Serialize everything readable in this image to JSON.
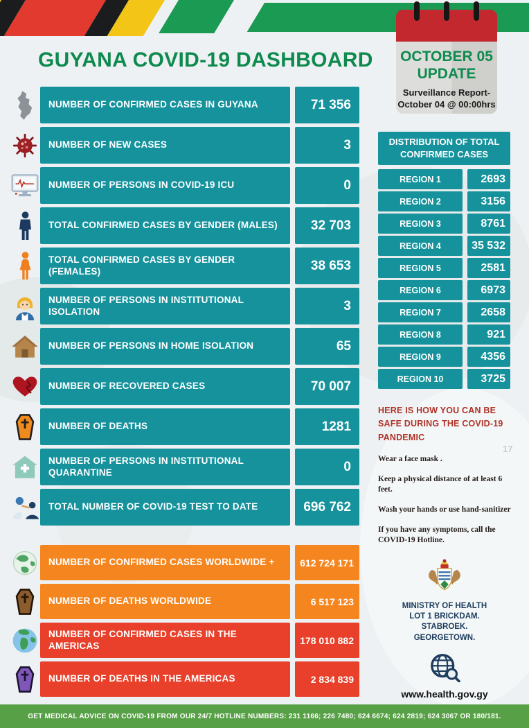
{
  "title": "GUYANA COVID-19 DASHBOARD",
  "watermark": "17",
  "calendar": {
    "date_line": "OCTOBER 05",
    "update_line": "UPDATE",
    "note_line1": "Surveillance Report-",
    "note_line2": "October 04 @ 00:00hrs"
  },
  "stats": [
    {
      "icon": "guyana-map-icon",
      "label": "NUMBER OF CONFIRMED CASES IN GUYANA",
      "value": "71 356"
    },
    {
      "icon": "virus-icon",
      "label": "NUMBER OF NEW CASES",
      "value": "3"
    },
    {
      "icon": "icu-monitor-icon",
      "label": "NUMBER OF PERSONS  IN COVID-19 ICU",
      "value": "0"
    },
    {
      "icon": "male-icon",
      "label": "TOTAL CONFIRMED CASES BY GENDER (MALES)",
      "value": "32 703"
    },
    {
      "icon": "female-icon",
      "label": "TOTAL CONFIRMED CASES BY GENDER (FEMALES)",
      "value": "38 653"
    },
    {
      "icon": "nurse-icon",
      "label": "NUMBER OF PERSONS IN INSTITUTIONAL ISOLATION",
      "value": "3"
    },
    {
      "icon": "home-icon",
      "label": "NUMBER OF PERSONS IN HOME ISOLATION",
      "value": "65"
    },
    {
      "icon": "heart-icon",
      "label": "NUMBER OF RECOVERED CASES",
      "value": "70 007"
    },
    {
      "icon": "coffin-orange-icon",
      "label": "NUMBER OF DEATHS",
      "value": "1281"
    },
    {
      "icon": "quarantine-house-icon",
      "label": "NUMBER OF PERSONS IN INSTITUTIONAL QUARANTINE",
      "value": "0"
    },
    {
      "icon": "covid-test-icon",
      "label": "TOTAL NUMBER OF COVID-19 TEST TO DATE",
      "value": "696 762"
    }
  ],
  "world_stats": [
    {
      "icon": "globe-green-icon",
      "label": "NUMBER OF CONFIRMED CASES WORLDWIDE +",
      "value": "612 724 171",
      "style": "orange"
    },
    {
      "icon": "coffin-brown-icon",
      "label": "NUMBER OF DEATHS WORLDWIDE",
      "value": "6 517 123",
      "style": "orange"
    },
    {
      "icon": "globe-americas-icon",
      "label": "NUMBER OF CONFIRMED CASES IN THE AMERICAS",
      "value": "178 010 882",
      "style": "red"
    },
    {
      "icon": "coffin-purple-icon",
      "label": "NUMBER OF DEATHS IN THE AMERICAS",
      "value": "2 834 839",
      "style": "red"
    }
  ],
  "distribution": {
    "header": "DISTRIBUTION OF TOTAL CONFIRMED CASES",
    "rows": [
      {
        "region": "REGION 1",
        "value": "2693"
      },
      {
        "region": "REGION 2",
        "value": "3156"
      },
      {
        "region": "REGION 3",
        "value": "8761"
      },
      {
        "region": "REGION 4",
        "value": "35 532"
      },
      {
        "region": "REGION 5",
        "value": "2581"
      },
      {
        "region": "REGION 6",
        "value": "6973"
      },
      {
        "region": "REGION 7",
        "value": "2658"
      },
      {
        "region": "REGION 8",
        "value": "921"
      },
      {
        "region": "REGION 9",
        "value": "4356"
      },
      {
        "region": "REGION 10",
        "value": "3725"
      }
    ]
  },
  "safety": {
    "header": "HERE IS HOW YOU CAN BE SAFE DURING THE COVID-19 PANDEMIC",
    "tips": [
      "Wear a face mask .",
      "Keep a physical distance of at least 6 feet.",
      "Wash your hands or use hand-sanitizer",
      "If you have any symptoms, call the COVID-19 Hotline."
    ]
  },
  "ministry": {
    "logo_icon": "coat-of-arms-icon",
    "name_lines": [
      "MINISTRY OF HEALTH",
      "LOT 1 BRICKDAM.",
      "STABROEK.",
      "GEORGETOWN."
    ],
    "web_icon": "web-globe-icon",
    "website": "www.health.gov.gy",
    "social": [
      "youtube-icon",
      "facebook-icon",
      "twitter-icon",
      "instagram-icon"
    ]
  },
  "hotline_bar": "GET MEDICAL ADVICE ON COVID-19 FROM OUR 24/7 HOTLINE NUMBERS: 231 1166; 226 7480; 624 6674; 624 2819; 624 3067 OR 180/181.",
  "colors": {
    "teal": "#15929c",
    "orange": "#f5861f",
    "red": "#e8402a",
    "green": "#0e8a4e",
    "bar_green": "#57a046",
    "safety_red": "#b03228",
    "navy": "#1d3c5e"
  }
}
